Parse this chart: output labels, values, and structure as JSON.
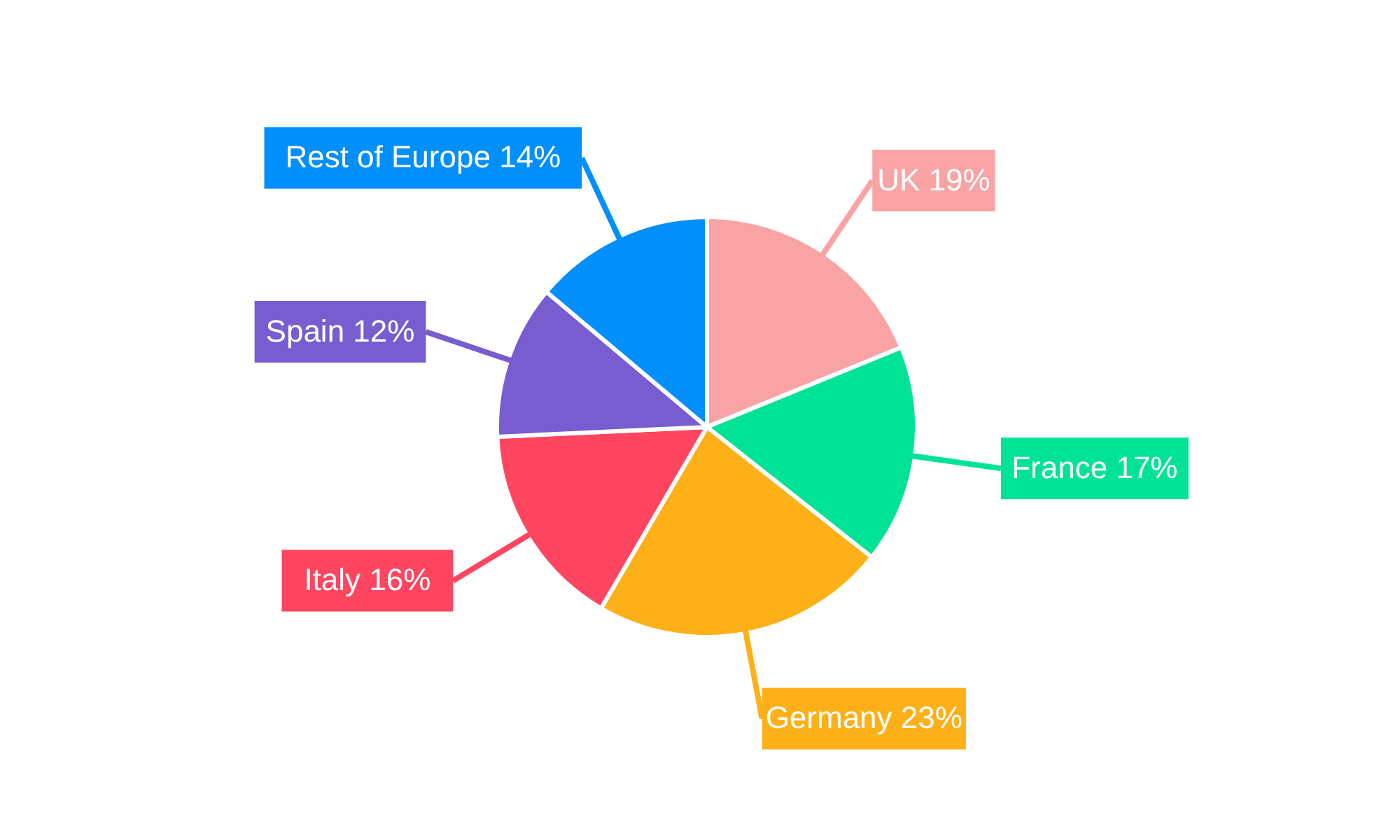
{
  "chart_data": {
    "type": "pie",
    "categories": [
      "UK",
      "France",
      "Germany",
      "Italy",
      "Spain",
      "Rest of Europe"
    ],
    "values": [
      19,
      17,
      23,
      16,
      12,
      14
    ],
    "value_labels": [
      "19%",
      "17%",
      "23%",
      "16%",
      "12%",
      "14%"
    ],
    "colors": [
      "#f9a3a4",
      "#00e396",
      "#feb019",
      "#ff4560",
      "#775dd0",
      "#008ffb"
    ],
    "legend": false
  }
}
